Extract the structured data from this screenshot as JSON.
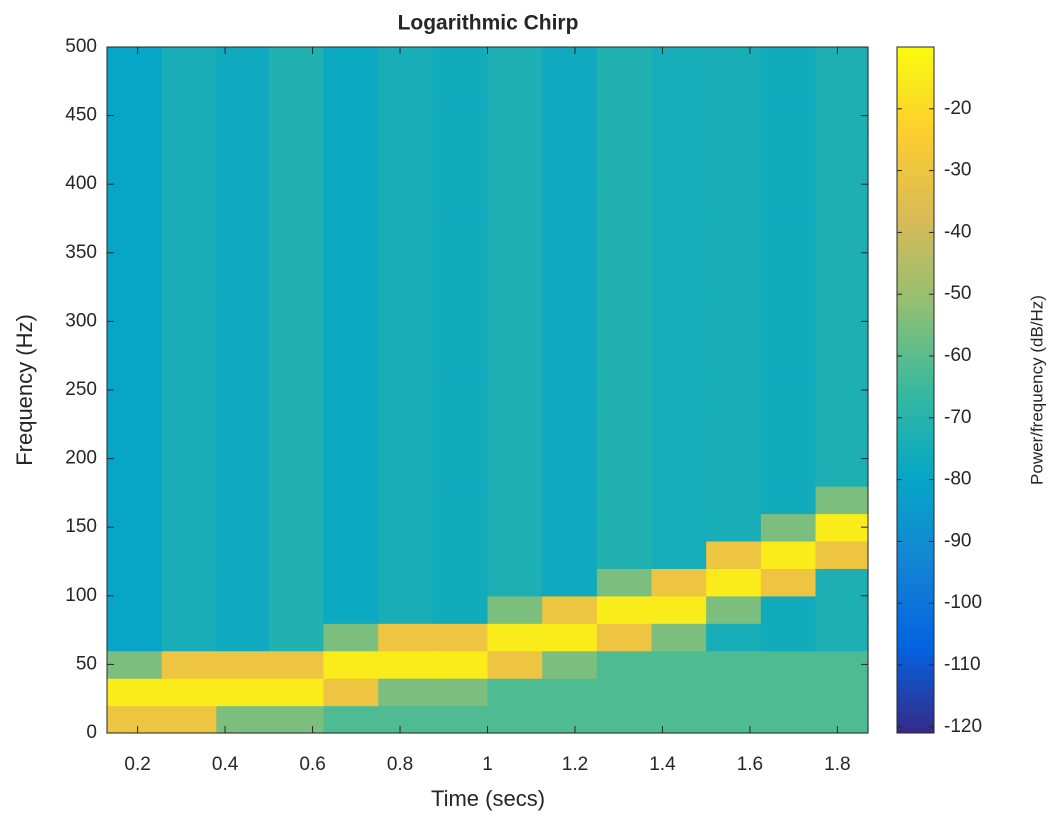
{
  "chart_data": {
    "type": "heatmap",
    "title": "Logarithmic Chirp",
    "x_label": "Time (secs)",
    "y_label": "Frequency (Hz)",
    "colorbar_label": "Power/frequency (dB/Hz)",
    "x": [
      0.19,
      0.32,
      0.44,
      0.56,
      0.69,
      0.81,
      0.94,
      1.06,
      1.19,
      1.31,
      1.44,
      1.56,
      1.69,
      1.81
    ],
    "y": [
      10,
      30,
      50,
      70,
      90,
      110,
      130,
      150,
      170,
      190,
      210,
      230,
      250,
      270,
      290,
      310,
      330,
      350,
      370,
      390,
      410,
      430,
      450,
      470,
      490
    ],
    "z": [
      [
        -30,
        -30,
        -55,
        -55,
        -62,
        -62,
        -62,
        -62,
        -62,
        -62,
        -62,
        -62,
        -62,
        -62
      ],
      [
        -15,
        -15,
        -15,
        -15,
        -30,
        -55,
        -55,
        -62,
        -62,
        -62,
        -62,
        -62,
        -62,
        -62
      ],
      [
        -55,
        -30,
        -30,
        -30,
        -15,
        -15,
        -15,
        -30,
        -55,
        -62,
        -62,
        -62,
        -62,
        -62
      ],
      [
        -80,
        -74,
        -77,
        -72,
        -55,
        -30,
        -30,
        -15,
        -15,
        -30,
        -55,
        -74,
        -76,
        -73
      ],
      [
        -80,
        -74,
        -77,
        -72,
        -78,
        -74,
        -76,
        -55,
        -30,
        -15,
        -15,
        -55,
        -76,
        -73
      ],
      [
        -80,
        -74,
        -77,
        -72,
        -78,
        -74,
        -76,
        -73,
        -77,
        -55,
        -30,
        -15,
        -30,
        -73
      ],
      [
        -80,
        -74,
        -77,
        -72,
        -78,
        -74,
        -76,
        -73,
        -77,
        -72,
        -75,
        -30,
        -15,
        -30
      ],
      [
        -80,
        -74,
        -77,
        -72,
        -78,
        -74,
        -76,
        -73,
        -77,
        -72,
        -75,
        -74,
        -55,
        -15
      ],
      [
        -80,
        -74,
        -77,
        -72,
        -78,
        -74,
        -76,
        -73,
        -77,
        -72,
        -75,
        -74,
        -76,
        -55
      ],
      [
        -80,
        -74,
        -77,
        -72,
        -78,
        -74,
        -76,
        -73,
        -77,
        -72,
        -75,
        -74,
        -76,
        -73
      ],
      [
        -80,
        -74,
        -77,
        -72,
        -78,
        -74,
        -76,
        -73,
        -77,
        -72,
        -75,
        -74,
        -76,
        -73
      ],
      [
        -80,
        -74,
        -77,
        -72,
        -78,
        -74,
        -76,
        -73,
        -77,
        -72,
        -75,
        -74,
        -76,
        -73
      ],
      [
        -80,
        -74,
        -77,
        -72,
        -78,
        -74,
        -76,
        -73,
        -77,
        -72,
        -75,
        -74,
        -76,
        -73
      ],
      [
        -80,
        -74,
        -77,
        -72,
        -78,
        -74,
        -76,
        -73,
        -77,
        -72,
        -75,
        -74,
        -76,
        -73
      ],
      [
        -80,
        -74,
        -77,
        -72,
        -78,
        -74,
        -76,
        -73,
        -77,
        -72,
        -75,
        -74,
        -76,
        -73
      ],
      [
        -80,
        -74,
        -77,
        -72,
        -78,
        -74,
        -76,
        -73,
        -77,
        -72,
        -75,
        -74,
        -76,
        -73
      ],
      [
        -80,
        -74,
        -77,
        -72,
        -78,
        -74,
        -76,
        -73,
        -77,
        -72,
        -75,
        -74,
        -76,
        -73
      ],
      [
        -80,
        -74,
        -77,
        -72,
        -78,
        -74,
        -76,
        -73,
        -77,
        -72,
        -75,
        -74,
        -76,
        -73
      ],
      [
        -80,
        -74,
        -77,
        -72,
        -78,
        -74,
        -76,
        -73,
        -77,
        -72,
        -75,
        -74,
        -76,
        -73
      ],
      [
        -80,
        -74,
        -77,
        -72,
        -78,
        -74,
        -76,
        -73,
        -77,
        -72,
        -75,
        -74,
        -76,
        -73
      ],
      [
        -80,
        -74,
        -77,
        -72,
        -78,
        -74,
        -76,
        -73,
        -77,
        -72,
        -75,
        -74,
        -76,
        -73
      ],
      [
        -80,
        -74,
        -77,
        -72,
        -78,
        -74,
        -76,
        -73,
        -77,
        -72,
        -75,
        -74,
        -76,
        -73
      ],
      [
        -80,
        -74,
        -77,
        -72,
        -78,
        -74,
        -76,
        -73,
        -77,
        -72,
        -75,
        -74,
        -76,
        -73
      ],
      [
        -80,
        -74,
        -77,
        -72,
        -78,
        -74,
        -76,
        -73,
        -77,
        -72,
        -75,
        -74,
        -76,
        -73
      ],
      [
        -80,
        -74,
        -77,
        -72,
        -78,
        -74,
        -76,
        -73,
        -77,
        -72,
        -75,
        -74,
        -76,
        -73
      ]
    ],
    "xlim": [
      0.13,
      1.87
    ],
    "xticks": [
      0.2,
      0.4,
      0.6,
      0.8,
      1,
      1.2,
      1.4,
      1.6,
      1.8
    ],
    "ylim": [
      0,
      500
    ],
    "yticks": [
      0,
      50,
      100,
      150,
      200,
      250,
      300,
      350,
      400,
      450,
      500
    ],
    "clim": [
      -121,
      -10
    ],
    "cticks": [
      -20,
      -30,
      -40,
      -50,
      -60,
      -70,
      -80,
      -90,
      -100,
      -110,
      -120
    ],
    "colormap": [
      "#352a87",
      "#0363e1",
      "#1485d4",
      "#06a7c6",
      "#38b99e",
      "#92bf73",
      "#d9ba56",
      "#fcce2e",
      "#f9fb0e"
    ]
  }
}
